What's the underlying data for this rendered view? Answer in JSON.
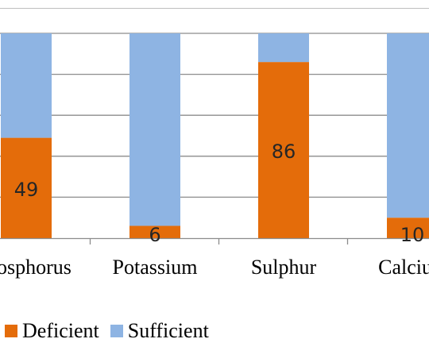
{
  "chart_data": {
    "type": "bar",
    "stacked": true,
    "normalized_percent": true,
    "categories": [
      "Phosphorus",
      "Potassium",
      "Sulphur",
      "Calcium"
    ],
    "visible_category_labels": [
      "osphorus",
      "Potassium",
      "Sulphur",
      "Calciu"
    ],
    "series": [
      {
        "name": "Deficient",
        "values": [
          49,
          6,
          86,
          10
        ],
        "color": "#E46C0A",
        "labels": [
          "49",
          "6",
          "86",
          "10"
        ]
      },
      {
        "name": "Sufficient",
        "values": [
          51,
          94,
          14,
          90
        ],
        "color": "#8EB4E3"
      }
    ],
    "ylim": [
      0,
      100
    ],
    "grid": true,
    "legend_position": "bottom"
  }
}
